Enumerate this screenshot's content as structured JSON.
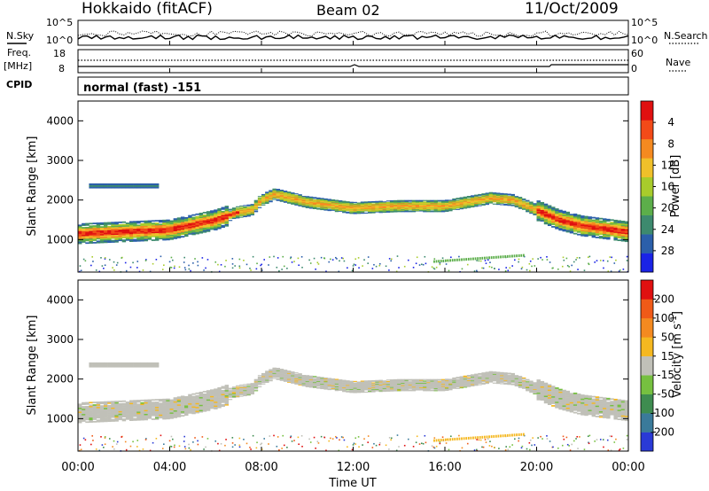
{
  "header": {
    "title": "Hokkaido (fitACF)",
    "beam": "Beam 02",
    "date": "11/Oct/2009"
  },
  "top_panels": {
    "nsky_label": "N.Sky",
    "nsearch_label": "N.Search",
    "noise_left_ticks": [
      "10^5",
      "10^0"
    ],
    "noise_right_ticks": [
      "10^5",
      "10^0"
    ],
    "freq_label": "Freq.",
    "freq_unit": "[MHz]",
    "freq_ticks": [
      "18",
      "8"
    ],
    "nave_label": "Nave",
    "nave_ticks": [
      "60",
      "0"
    ],
    "cpid_label": "CPID",
    "cpid_text": "normal (fast) -151"
  },
  "chart_data": [
    {
      "type": "heatmap",
      "panel": "power",
      "ylabel": "Slant Range [km]",
      "xlabel": "",
      "yticks": [
        1000,
        2000,
        3000,
        4000
      ],
      "ylim": [
        180,
        4500
      ],
      "x_ticks": [
        "00:00",
        "04:00",
        "08:00",
        "12:00",
        "16:00",
        "20:00",
        "00:00"
      ],
      "colorbar": {
        "label": "Power [dB]",
        "ticks": [
          "4",
          "8",
          "12",
          "16",
          "20",
          "24",
          "28"
        ],
        "colors": [
          "#1a23e6",
          "#2b5faa",
          "#3d8a6e",
          "#5cae4a",
          "#a8cc2b",
          "#f0c02a",
          "#f58a20",
          "#f24a18",
          "#e01010"
        ]
      },
      "features": [
        {
          "name": "main-echo-band",
          "description": "Strong backscatter band",
          "range_km_center_at_00": 1150,
          "range_km_center_at_08": 2000,
          "range_km_center_at_12": 1800,
          "range_km_center_at_18": 2050,
          "range_km_center_at_24": 1200
        },
        {
          "name": "upper-weak-band",
          "range_km": 2350,
          "time_start": "00:30",
          "time_end": "03:30"
        }
      ]
    },
    {
      "type": "heatmap",
      "panel": "velocity",
      "ylabel": "Slant Range [km]",
      "xlabel": "Time UT",
      "yticks": [
        1000,
        2000,
        3000,
        4000
      ],
      "ylim": [
        180,
        4500
      ],
      "x_ticks": [
        "00:00",
        "04:00",
        "08:00",
        "12:00",
        "16:00",
        "20:00",
        "00:00"
      ],
      "colorbar": {
        "label": "Velocity [m s^-1]",
        "ticks": [
          "200",
          "100",
          "50",
          "15",
          "-15",
          "-50",
          "-100",
          "-200"
        ],
        "colors": [
          "#2a3ad6",
          "#3a7a9a",
          "#3e8c50",
          "#76c040",
          "#c0c0b8",
          "#f5b820",
          "#f48a20",
          "#f05a18",
          "#e01010"
        ]
      }
    }
  ]
}
